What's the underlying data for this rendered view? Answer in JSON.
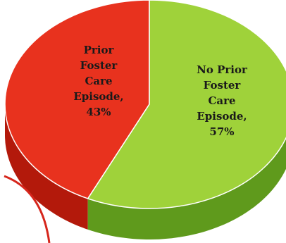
{
  "chart_data": {
    "type": "pie",
    "style": "3d",
    "slices": [
      {
        "label": "Prior Foster Care Episode",
        "value": 43,
        "display": [
          "Prior",
          "Foster",
          "Care",
          "Episode,",
          "43%"
        ],
        "color": "#e8321e",
        "side_color": "#b3190b"
      },
      {
        "label": "No Prior Foster Care Episode",
        "value": 57,
        "display": [
          "No Prior",
          "Foster",
          "Care",
          "Episode,",
          "57%"
        ],
        "color": "#9fd23a",
        "side_color": "#5f9a1c"
      }
    ],
    "accent_color": "#d6261c"
  }
}
